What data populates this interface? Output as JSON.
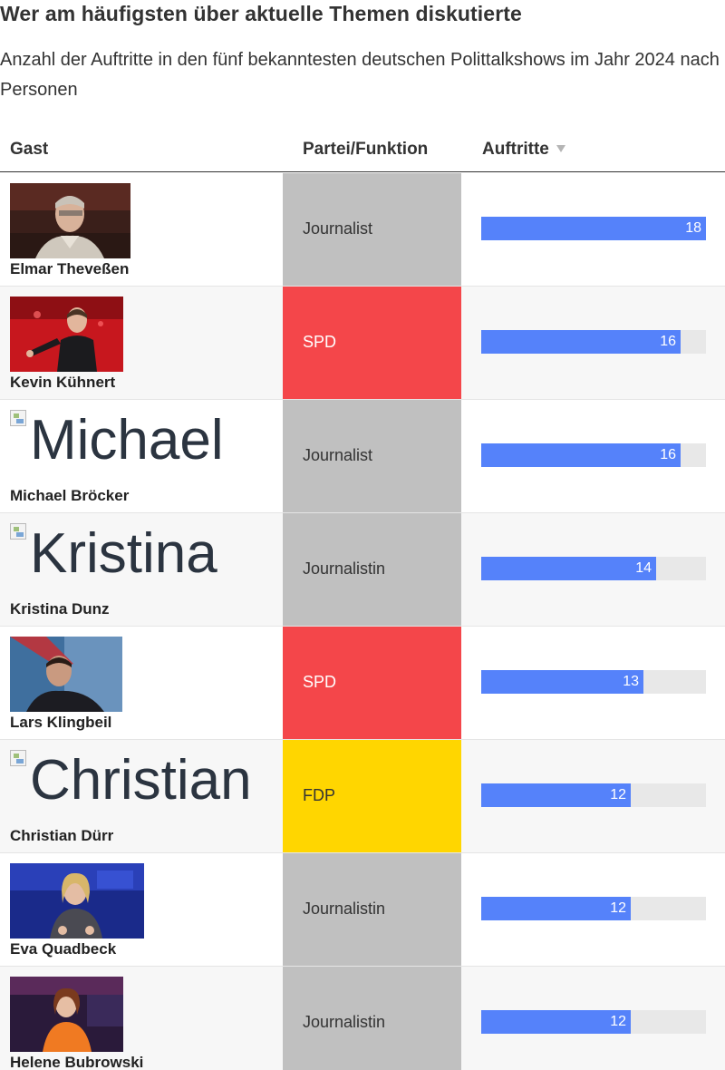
{
  "title": "Wer am häufigsten über aktuelle Themen diskutierte",
  "subtitle": "Anzahl der Auftritte in den fünf bekanntesten deutschen Polittalkshows im Jahr 2024 nach Personen",
  "columns": {
    "guest": "Gast",
    "party": "Partei/Funktion",
    "count": "Auftritte"
  },
  "sort_icon": "sort-descending-icon",
  "max_value": 18,
  "colors": {
    "bar": "#5582fa",
    "track": "#e8e8e8",
    "journalist": "#c0c0c0",
    "SPD": "#f4464a",
    "FDP": "#ffd600"
  },
  "rows": [
    {
      "name": "Elmar Theveßen",
      "party": "Journalist",
      "party_key": "journalist",
      "value": 18,
      "photo": "photo-elmar",
      "alt": ""
    },
    {
      "name": "Kevin Kühnert",
      "party": "SPD",
      "party_key": "SPD",
      "value": 16,
      "photo": "photo-kevin",
      "alt": ""
    },
    {
      "name": "Michael Bröcker",
      "party": "Journalist",
      "party_key": "journalist",
      "value": 16,
      "photo": "",
      "alt": "Michael"
    },
    {
      "name": "Kristina Dunz",
      "party": "Journalistin",
      "party_key": "journalist",
      "value": 14,
      "photo": "",
      "alt": "Kristina"
    },
    {
      "name": "Lars Klingbeil",
      "party": "SPD",
      "party_key": "SPD",
      "value": 13,
      "photo": "photo-lars",
      "alt": ""
    },
    {
      "name": "Christian Dürr",
      "party": "FDP",
      "party_key": "FDP",
      "value": 12,
      "photo": "",
      "alt": "Christian"
    },
    {
      "name": "Eva Quadbeck",
      "party": "Journalistin",
      "party_key": "journalist",
      "value": 12,
      "photo": "photo-eva",
      "alt": ""
    },
    {
      "name": "Helene Bubrowski",
      "party": "Journalistin",
      "party_key": "journalist",
      "value": 12,
      "photo": "photo-helene",
      "alt": ""
    }
  ]
}
